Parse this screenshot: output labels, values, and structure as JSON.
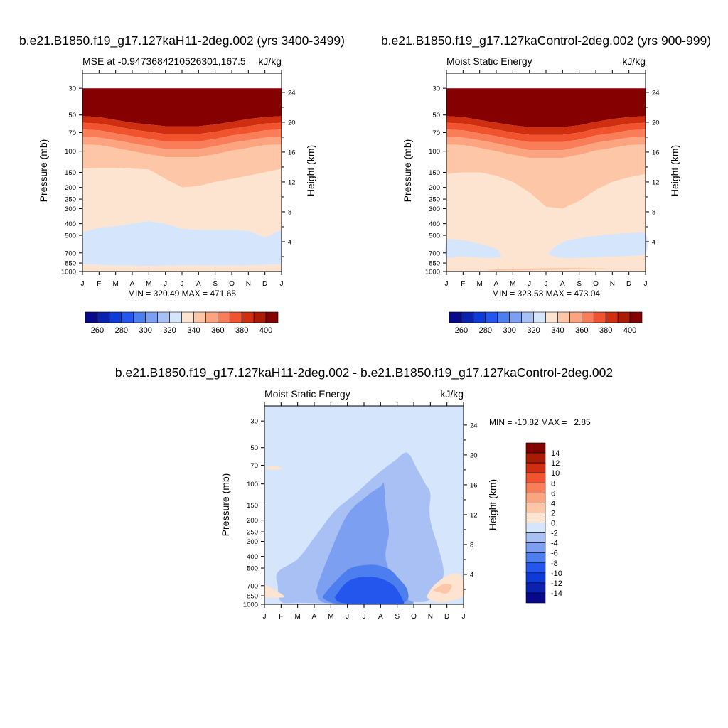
{
  "titles": {
    "top_left": "b.e21.B1850.f19_g17.127kaH11-2deg.002 (yrs 3400-3499)",
    "top_right": "b.e21.B1850.f19_g17.127kaControl-2deg.002 (yrs 900-999)",
    "bottom": "b.e21.B1850.f19_g17.127kaH11-2deg.002 - b.e21.B1850.f19_g17.127kaControl-2deg.002"
  },
  "chart_data": [
    {
      "type": "heatmap",
      "variable_label": "MSE at -0.9473684210526301,167.5",
      "units": "kJ/kg",
      "ylabel": "Pressure (mb)",
      "ylabel_right": "Height (km)",
      "x_ticks": [
        "J",
        "F",
        "M",
        "A",
        "M",
        "J",
        "J",
        "A",
        "S",
        "O",
        "N",
        "D",
        "J"
      ],
      "y_ticks": [
        30,
        50,
        70,
        100,
        150,
        200,
        250,
        300,
        400,
        500,
        700,
        850,
        1000
      ],
      "y_scale": "log",
      "y_reversed": true,
      "height_ticks": [
        24,
        20,
        16,
        12,
        8,
        4
      ],
      "stats": "MIN = 320.49 MAX = 471.65",
      "colorbar": {
        "orientation": "horizontal",
        "levels": [
          250,
          260,
          270,
          280,
          290,
          300,
          310,
          320,
          330,
          340,
          350,
          360,
          370,
          380,
          390,
          400
        ],
        "labels": [
          "260",
          "280",
          "300",
          "320",
          "340",
          "360",
          "380",
          "400"
        ],
        "colors": [
          "#08088a",
          "#0a22ae",
          "#0e3bd8",
          "#2456ee",
          "#4d7ef0",
          "#7c9ff2",
          "#a9c0f5",
          "#d5e5fb",
          "#fde4d0",
          "#fdc6a6",
          "#fca47f",
          "#f97d58",
          "#f0532d",
          "#cf2f10",
          "#a81c06",
          "#850000"
        ]
      },
      "contours": [
        {
          "level": "above 400",
          "color": "#850000",
          "top_by_month": [
            30,
            30,
            30,
            30,
            30,
            30,
            30,
            30,
            30,
            30,
            30,
            30,
            30
          ],
          "bottom_by_month": [
            51,
            52,
            55,
            58,
            60,
            62,
            62,
            62,
            60,
            57,
            54,
            52,
            51
          ]
        },
        {
          "level": "380-390",
          "color": "#cf2f10",
          "bottom_by_month": [
            58,
            59,
            62,
            66,
            69,
            72,
            72,
            72,
            69,
            65,
            62,
            59,
            58
          ]
        },
        {
          "level": "370-380",
          "color": "#f0532d",
          "bottom_by_month": [
            66,
            67,
            71,
            75,
            79,
            83,
            83,
            83,
            79,
            74,
            71,
            67,
            66
          ]
        },
        {
          "level": "360-370",
          "color": "#f97d58",
          "bottom_by_month": [
            76,
            77,
            81,
            86,
            91,
            96,
            96,
            96,
            91,
            85,
            81,
            77,
            76
          ]
        },
        {
          "level": "350-360",
          "color": "#fca47f",
          "bottom_by_month": [
            88,
            89,
            94,
            100,
            106,
            112,
            112,
            112,
            106,
            99,
            94,
            89,
            88
          ]
        },
        {
          "level": "340-350",
          "color": "#fdc6a6",
          "bottom_by_month": [
            140,
            138,
            138,
            140,
            142,
            170,
            200,
            195,
            180,
            170,
            160,
            150,
            140
          ]
        },
        {
          "level": "330-340",
          "color": "#fde4d0",
          "bottom_by_month": [
            470,
            430,
            420,
            400,
            380,
            400,
            440,
            450,
            450,
            450,
            460,
            520,
            450
          ]
        },
        {
          "level": "320-330",
          "color": "#d5e5fb",
          "bottom_by_month": [
            870,
            880,
            895,
            895,
            900,
            895,
            890,
            890,
            895,
            895,
            890,
            880,
            870
          ]
        },
        {
          "level": "330-340 surface",
          "color": "#fde4d0",
          "bottom_by_month": [
            1000,
            1000,
            1000,
            1000,
            1000,
            1000,
            1000,
            1000,
            1000,
            1000,
            1000,
            1000,
            1000
          ]
        }
      ]
    },
    {
      "type": "heatmap",
      "variable_label": "Moist Static Energy",
      "units": "kJ/kg",
      "ylabel": "Pressure (mb)",
      "ylabel_right": "Height (km)",
      "x_ticks": [
        "J",
        "F",
        "M",
        "A",
        "M",
        "J",
        "J",
        "A",
        "S",
        "O",
        "N",
        "D",
        "J"
      ],
      "y_ticks": [
        30,
        50,
        70,
        100,
        150,
        200,
        250,
        300,
        400,
        500,
        700,
        850,
        1000
      ],
      "y_scale": "log",
      "y_reversed": true,
      "height_ticks": [
        24,
        20,
        16,
        12,
        8,
        4
      ],
      "stats": "MIN = 323.53 MAX = 473.04",
      "colorbar": {
        "orientation": "horizontal",
        "levels": [
          250,
          260,
          270,
          280,
          290,
          300,
          310,
          320,
          330,
          340,
          350,
          360,
          370,
          380,
          390,
          400
        ],
        "labels": [
          "260",
          "280",
          "300",
          "320",
          "340",
          "360",
          "380",
          "400"
        ],
        "colors": [
          "#08088a",
          "#0a22ae",
          "#0e3bd8",
          "#2456ee",
          "#4d7ef0",
          "#7c9ff2",
          "#a9c0f5",
          "#d5e5fb",
          "#fde4d0",
          "#fdc6a6",
          "#fca47f",
          "#f97d58",
          "#f0532d",
          "#cf2f10",
          "#a81c06",
          "#850000"
        ]
      },
      "contours": [
        {
          "level": "above 400",
          "color": "#850000",
          "top_by_month": [
            30,
            30,
            30,
            30,
            30,
            30,
            30,
            30,
            30,
            30,
            30,
            30,
            30
          ],
          "bottom_by_month": [
            51,
            52,
            55,
            58,
            61,
            63,
            63,
            63,
            61,
            57,
            54,
            52,
            51
          ]
        },
        {
          "level": "380-390",
          "color": "#cf2f10",
          "bottom_by_month": [
            58,
            59,
            62,
            66,
            70,
            73,
            73,
            73,
            70,
            65,
            62,
            59,
            58
          ]
        },
        {
          "level": "370-380",
          "color": "#f0532d",
          "bottom_by_month": [
            66,
            67,
            71,
            75,
            80,
            84,
            84,
            84,
            80,
            74,
            71,
            67,
            66
          ]
        },
        {
          "level": "360-370",
          "color": "#f97d58",
          "bottom_by_month": [
            76,
            77,
            81,
            86,
            92,
            98,
            98,
            98,
            92,
            85,
            81,
            77,
            76
          ]
        },
        {
          "level": "350-360",
          "color": "#fca47f",
          "bottom_by_month": [
            88,
            89,
            94,
            100,
            107,
            114,
            114,
            114,
            107,
            99,
            94,
            89,
            88
          ]
        },
        {
          "level": "340-350",
          "color": "#fdc6a6",
          "bottom_by_month": [
            155,
            150,
            150,
            160,
            180,
            220,
            290,
            300,
            260,
            210,
            180,
            165,
            155
          ]
        },
        {
          "level": "330-340",
          "color": "#fde4d0",
          "bottom_by_month": [
            1000,
            1000,
            1000,
            1000,
            1000,
            1000,
            1000,
            1000,
            1000,
            1000,
            1000,
            1000,
            1000
          ]
        }
      ],
      "blobs": [
        {
          "color": "#d5e5fb",
          "desc": "Jan-Mar low-level MSE minimum",
          "months": [
            0,
            0.4,
            1,
            1.8,
            2.9,
            3.3,
            3.2,
            2.6,
            1.6,
            0.8,
            0
          ],
          "pressures": [
            560,
            540,
            550,
            580,
            640,
            730,
            760,
            770,
            760,
            750,
            760
          ]
        },
        {
          "color": "#d5e5fb",
          "desc": "Jul-Dec low-level MSE minimum",
          "months": [
            6.2,
            7,
            8,
            9,
            10,
            11,
            12,
            12,
            11,
            10,
            9,
            8,
            7,
            6.3
          ],
          "pressures": [
            690,
            570,
            530,
            505,
            490,
            480,
            490,
            700,
            740,
            750,
            760,
            770,
            770,
            730
          ]
        },
        {
          "color": "#fdc6a6",
          "desc": "near-surface maximum Apr-Oct",
          "months": [
            3,
            5,
            7,
            8,
            9.5,
            3
          ],
          "pressures": [
            960,
            945,
            935,
            935,
            950,
            980
          ]
        }
      ]
    },
    {
      "type": "heatmap",
      "variable_label": "Moist Static Energy",
      "units": "kJ/kg",
      "ylabel": "Pressure (mb)",
      "ylabel_right": "Height (km)",
      "x_ticks": [
        "J",
        "F",
        "M",
        "A",
        "M",
        "J",
        "J",
        "A",
        "S",
        "O",
        "N",
        "D",
        "J"
      ],
      "y_ticks": [
        30,
        50,
        70,
        100,
        150,
        200,
        250,
        300,
        400,
        500,
        700,
        850,
        1000
      ],
      "y_scale": "log",
      "y_reversed": true,
      "height_ticks": [
        24,
        20,
        16,
        12,
        8,
        4
      ],
      "stats": "MIN = -10.82 MAX =   2.85",
      "colorbar": {
        "orientation": "vertical",
        "levels": [
          -15,
          -14,
          -12,
          -10,
          -8,
          -6,
          -4,
          -2,
          0,
          2,
          4,
          6,
          8,
          10,
          12,
          14
        ],
        "labels": [
          "14",
          "12",
          "10",
          "8",
          "6",
          "4",
          "2",
          "0",
          "-2",
          "-4",
          "-6",
          "-8",
          "-10",
          "-12",
          "-14"
        ],
        "colors_top_to_bottom": [
          "#850000",
          "#a81c06",
          "#cf2f10",
          "#f0532d",
          "#f97d58",
          "#fca47f",
          "#fdc6a6",
          "#fde4d0",
          "#d5e5fb",
          "#a9c0f5",
          "#7c9ff2",
          "#4d7ef0",
          "#2456ee",
          "#0e3bd8",
          "#0a22ae",
          "#08088a"
        ]
      },
      "background": {
        "level": "-2 to 0",
        "color": "#d5e5fb"
      },
      "blobs": [
        {
          "color": "#a9c0f5",
          "desc": "-4 to -2",
          "months": [
            0.8,
            2,
            3,
            4.2,
            5.5,
            6.7,
            7.8,
            8.6,
            9.2,
            9.7,
            10,
            10,
            10.8,
            10,
            9,
            8,
            7,
            5,
            3.5,
            2,
            1,
            0.8
          ],
          "pressures": [
            540,
            420,
            280,
            170,
            120,
            85,
            65,
            55,
            75,
            100,
            120,
            200,
            540,
            900,
            960,
            980,
            985,
            985,
            980,
            970,
            950,
            700
          ]
        },
        {
          "color": "#7c9ff2",
          "desc": "-6 to -4",
          "months": [
            3.2,
            4,
            5,
            6.2,
            7,
            7.2,
            7.3,
            7.5,
            7.3,
            7.7,
            8.2,
            8.6,
            9,
            8,
            6,
            4.5,
            3.5,
            3.2
          ],
          "pressures": [
            700,
            360,
            180,
            125,
            105,
            100,
            150,
            250,
            400,
            600,
            760,
            900,
            980,
            990,
            995,
            990,
            960,
            850
          ]
        },
        {
          "color": "#4d7ef0",
          "desc": "-8 to -6",
          "months": [
            3.6,
            4.4,
            5.2,
            6.3,
            7,
            7.6,
            8,
            8.6,
            8.5,
            7,
            5.5,
            4.2,
            3.6
          ],
          "pressures": [
            830,
            620,
            500,
            470,
            480,
            520,
            590,
            750,
            950,
            990,
            995,
            980,
            900
          ]
        },
        {
          "color": "#2456ee",
          "desc": "-10 to -8",
          "months": [
            4.3,
            5,
            6,
            7,
            7.8,
            8.3,
            8.3,
            7,
            5.5,
            4.5,
            4.3
          ],
          "pressures": [
            850,
            650,
            590,
            610,
            700,
            900,
            1000,
            1000,
            1000,
            960,
            900
          ]
        },
        {
          "color": "#fde4d0",
          "desc": "0 to 2, upper left",
          "months": [
            0.1,
            0.5,
            1.1,
            0.8,
            0.3,
            0.1
          ],
          "pressures": [
            73,
            71,
            74,
            76,
            76,
            74
          ]
        },
        {
          "color": "#fde4d0",
          "desc": "0 to 2, lower left",
          "months": [
            0,
            0.5,
            1.2,
            0.8,
            0.2,
            0
          ],
          "pressures": [
            700,
            740,
            860,
            880,
            880,
            860
          ]
        },
        {
          "color": "#fde4d0",
          "desc": "0 to 2, Oct-Dec",
          "months": [
            9.8,
            10.2,
            11,
            11.7,
            12,
            12,
            11,
            10.3,
            9.8
          ],
          "pressures": [
            850,
            700,
            580,
            560,
            640,
            850,
            950,
            950,
            880
          ]
        },
        {
          "color": "#fdc6a6",
          "desc": "2 to 4, Nov-Dec",
          "months": [
            10.2,
            10.8,
            11.3,
            11,
            10.5,
            10.2
          ],
          "pressures": [
            760,
            680,
            700,
            810,
            790,
            770
          ]
        }
      ]
    }
  ]
}
